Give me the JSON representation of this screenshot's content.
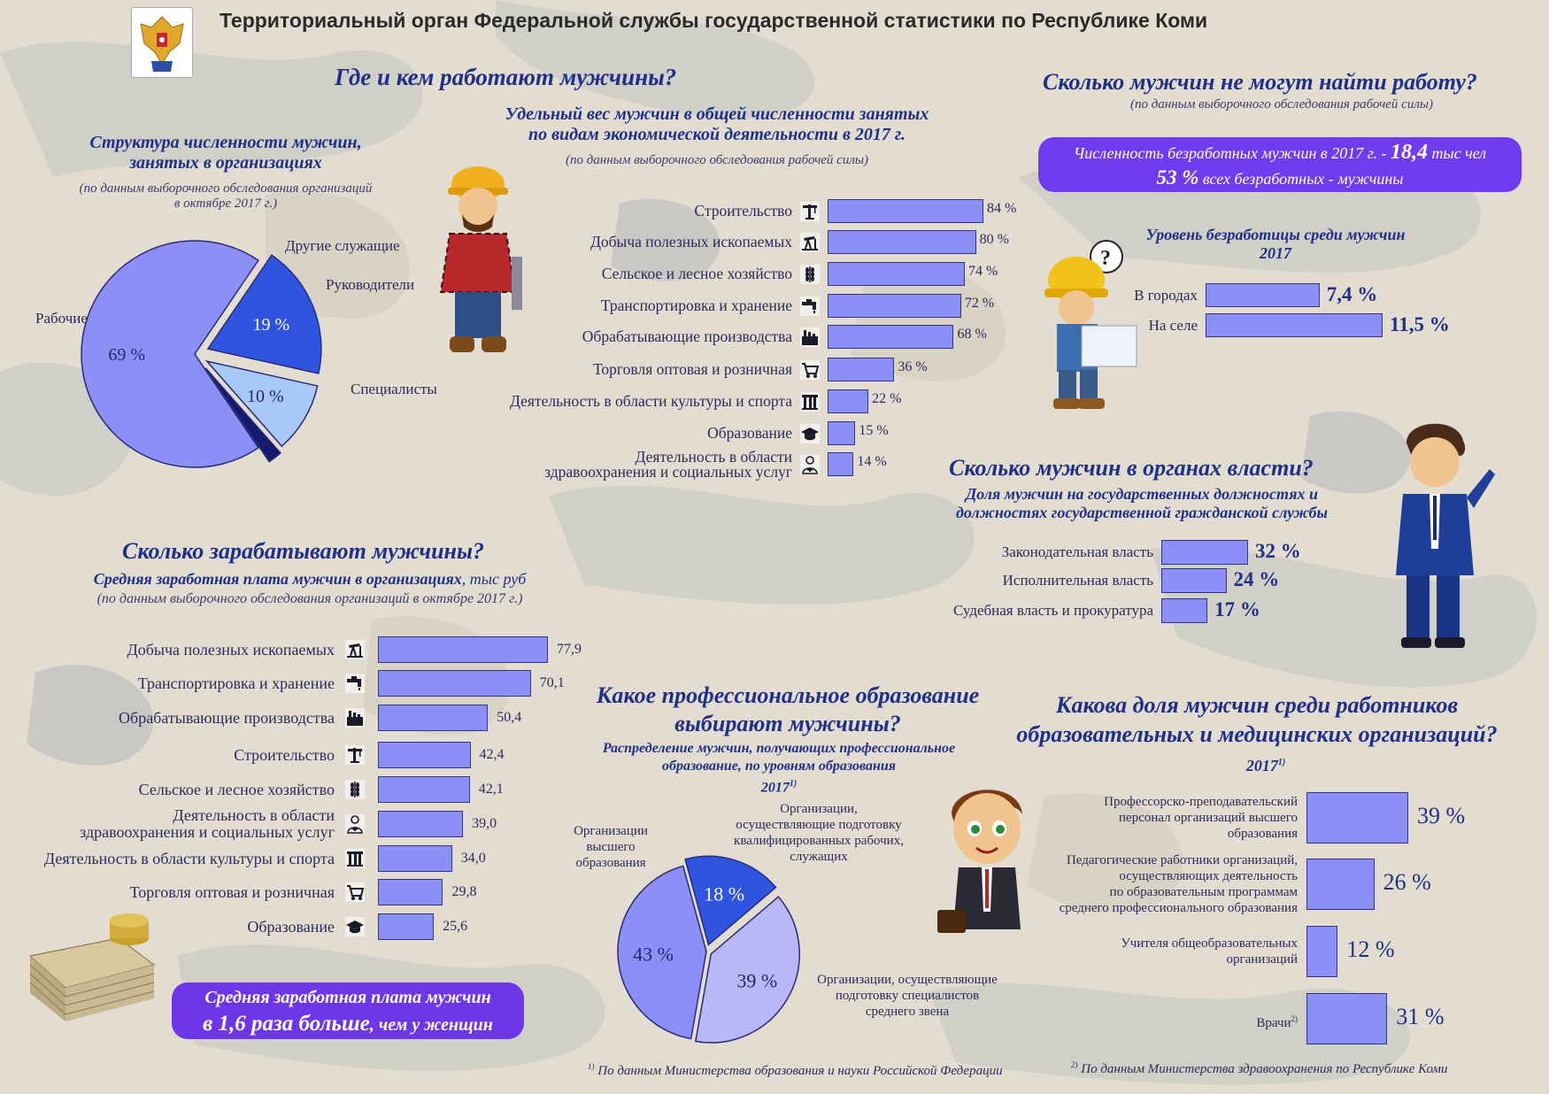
{
  "header": {
    "org_title": "Территориальный орган Федеральной службы государственной статистики по Республике Коми"
  },
  "colors": {
    "bar_fill": "#8c8ff5",
    "bar_stroke": "#33338a",
    "title_blue": "#1f2f8a",
    "purple_box": "#6f3cf0"
  },
  "where": {
    "title": "Где и кем работают мужчины?",
    "structure_title_1": "Структура численности мужчин,",
    "structure_title_2": "занятых в организациях",
    "structure_note_1": "(по данным выборочного обследования организаций",
    "structure_note_2": "в октябре 2017 г.)",
    "share_title_1": "Удельный вес мужчин в общей численности занятых",
    "share_title_2": "по видам экономической деятельности в 2017 г.",
    "share_note": "(по данным выборочного обследования рабочей силы)"
  },
  "unemp": {
    "title": "Сколько мужчин не могут найти работу?",
    "note": "(по данным выборочного обследования рабочей силы)",
    "box_line1_a": "Численность безработных мужчин в 2017 г. - ",
    "box_line1_b": "18,4",
    "box_line1_c": " тыс чел",
    "box_line2_a": "53 %",
    "box_line2_b": " всех безработных - мужчины",
    "rate_title_1": "Уровень безработицы среди мужчин",
    "rate_title_2": "2017"
  },
  "gov": {
    "title": "Сколько мужчин в органах власти?",
    "sub_1": "Доля мужчин на государственных должностях и",
    "sub_2": "должностях государственной гражданской службы"
  },
  "salary": {
    "title": "Сколько зарабатывают мужчины?",
    "sub_a": "Средняя заработная плата мужчин в организациях",
    "sub_b": ", тыс руб",
    "note": "(по данным выборочного обследования организаций в октябре 2017 г.)",
    "box_line1": "Средняя заработная плата мужчин",
    "box_line2_a": "в 1,6 раза больше",
    "box_line2_b": ", чем у женщин"
  },
  "edu": {
    "title_1": "Какое профессиональное образование",
    "title_2": "выбирают мужчины?",
    "sub_1": "Распределение мужчин, получающих профессиональное",
    "sub_2": "образование, по уровням образования",
    "sub_3": "2017",
    "sub_3_sup": "1)"
  },
  "med": {
    "title_1": "Какова доля мужчин среди работников",
    "title_2": "образовательных и медицинских организаций?",
    "year": "2017",
    "year_sup": "1)"
  },
  "footnotes": {
    "f1_sup": "1)",
    "f1": "По данным Министерства образования и науки Российской Федерации",
    "f2_sup": "2)",
    "f2": "По данным Министерства здравоохранения по Республике Коми"
  },
  "chart_data": [
    {
      "id": "structure_pie",
      "type": "pie",
      "labels": [
        "Рабочие",
        "Специалисты",
        "Руководители",
        "Другие служащие"
      ],
      "values": [
        69,
        19,
        10,
        2
      ],
      "value_labels": [
        "69 %",
        "19 %",
        "10 %",
        ""
      ],
      "colors": [
        "#8c8ff5",
        "#2f55e0",
        "#a8c8f8",
        "#141a6e"
      ]
    },
    {
      "id": "share_bar",
      "type": "bar",
      "orientation": "horizontal",
      "categories": [
        "Строительство",
        "Добыча полезных ископаемых",
        "Сельское и лесное хозяйство",
        "Транспортировка и хранение",
        "Обрабатывающие производства",
        "Торговля оптовая и розничная",
        "Деятельность в области культуры и спорта",
        "Образование",
        "Деятельность в области здравоохранения и социальных услуг"
      ],
      "category_lines": [
        [
          "Строительство"
        ],
        [
          "Добыча полезных ископаемых"
        ],
        [
          "Сельское и лесное хозяйство"
        ],
        [
          "Транспортировка и хранение"
        ],
        [
          "Обрабатывающие производства"
        ],
        [
          "Торговля оптовая и розничная"
        ],
        [
          "Деятельность в области культуры и спорта"
        ],
        [
          "Образование"
        ],
        [
          "Деятельность в области",
          "здравоохранения и социальных услуг"
        ]
      ],
      "icons": [
        "crane-icon",
        "oil-pump-icon",
        "wheat-icon",
        "tap-icon",
        "factory-icon",
        "cart-icon",
        "column-icon",
        "grad-cap-icon",
        "doctor-icon"
      ],
      "values": [
        84,
        80,
        74,
        72,
        68,
        36,
        22,
        15,
        14
      ],
      "value_labels": [
        "84 %",
        "80 %",
        "74 %",
        "72 %",
        "68 %",
        "36 %",
        "22 %",
        "15 %",
        "14 %"
      ]
    },
    {
      "id": "unemployment_rate",
      "type": "bar",
      "orientation": "horizontal",
      "categories": [
        "В городах",
        "На селе"
      ],
      "values": [
        7.4,
        11.5
      ],
      "value_labels": [
        "7,4 %",
        "11,5 %"
      ]
    },
    {
      "id": "gov_share",
      "type": "bar",
      "orientation": "horizontal",
      "categories": [
        "Законодательная власть",
        "Исполнительная власть",
        "Судебная власть и прокуратура"
      ],
      "values": [
        32,
        24,
        17
      ],
      "value_labels": [
        "32 %",
        "24 %",
        "17 %"
      ]
    },
    {
      "id": "salary_bar",
      "type": "bar",
      "orientation": "horizontal",
      "categories": [
        "Добыча полезных ископаемых",
        "Транспортировка и хранение",
        "Обрабатывающие производства",
        "Строительство",
        "Сельское и лесное хозяйство",
        "Деятельность в области здравоохранения и социальных услуг",
        "Деятельность в области культуры и спорта",
        "Торговля оптовая и розничная",
        "Образование"
      ],
      "category_lines": [
        [
          "Добыча полезных ископаемых"
        ],
        [
          "Транспортировка и хранение"
        ],
        [
          "Обрабатывающие производства"
        ],
        [
          "Строительство"
        ],
        [
          "Сельское и лесное хозяйство"
        ],
        [
          "Деятельность в области",
          "здравоохранения и социальных услуг"
        ],
        [
          "Деятельность в области культуры и спорта"
        ],
        [
          "Торговля оптовая и розничная"
        ],
        [
          "Образование"
        ]
      ],
      "icons": [
        "oil-pump-icon",
        "tap-icon",
        "factory-icon",
        "crane-icon",
        "wheat-icon",
        "doctor-icon",
        "column-icon",
        "cart-icon",
        "grad-cap-icon"
      ],
      "values": [
        77.9,
        70.1,
        50.4,
        42.4,
        42.1,
        39.0,
        34.0,
        29.8,
        25.6
      ],
      "value_labels": [
        "77,9",
        "70,1",
        "50,4",
        "42,4",
        "42,1",
        "39,0",
        "34,0",
        "29,8",
        "25,6"
      ]
    },
    {
      "id": "education_pie",
      "type": "pie",
      "labels": [
        "Организации высшего образования",
        "Организации, осуществляющие подготовку квалифицированных рабочих, служащих",
        "Организации, осуществляющие подготовку специалистов среднего звена"
      ],
      "label_lines": [
        [
          "Организации",
          "высшего",
          "образования"
        ],
        [
          "Организации,",
          "осуществляющие подготовку",
          "квалифицированных рабочих,",
          "служащих"
        ],
        [
          "Организации, осуществляющие",
          "подготовку специалистов",
          "среднего звена"
        ]
      ],
      "values": [
        43,
        18,
        39
      ],
      "value_labels": [
        "43 %",
        "18 %",
        "39 %"
      ],
      "colors": [
        "#8c8ff5",
        "#2f55e0",
        "#b8b8f8"
      ]
    },
    {
      "id": "staff_share",
      "type": "bar",
      "orientation": "horizontal",
      "categories": [
        "Профессорско-преподавательский персонал организаций высшего образования",
        "Педагогические работники организаций, осуществляющих деятельность по образовательным программам среднего профессионального образования",
        "Учителя общеобразовательных организаций",
        "Врачи"
      ],
      "category_lines": [
        [
          "Профессорско-преподавательский",
          "персонал организаций высшего",
          "образования"
        ],
        [
          "Педагогические работники организаций,",
          "осуществляющих деятельность",
          "по образовательным программам",
          "среднего профессионального образования"
        ],
        [
          "Учителя общеобразовательных",
          "организаций"
        ],
        [
          "Врачи"
        ]
      ],
      "category_sup": [
        "",
        "",
        "",
        "2)"
      ],
      "values": [
        39,
        26,
        12,
        31
      ],
      "value_labels": [
        "39 %",
        "26 %",
        "12 %",
        "31 %"
      ]
    }
  ]
}
